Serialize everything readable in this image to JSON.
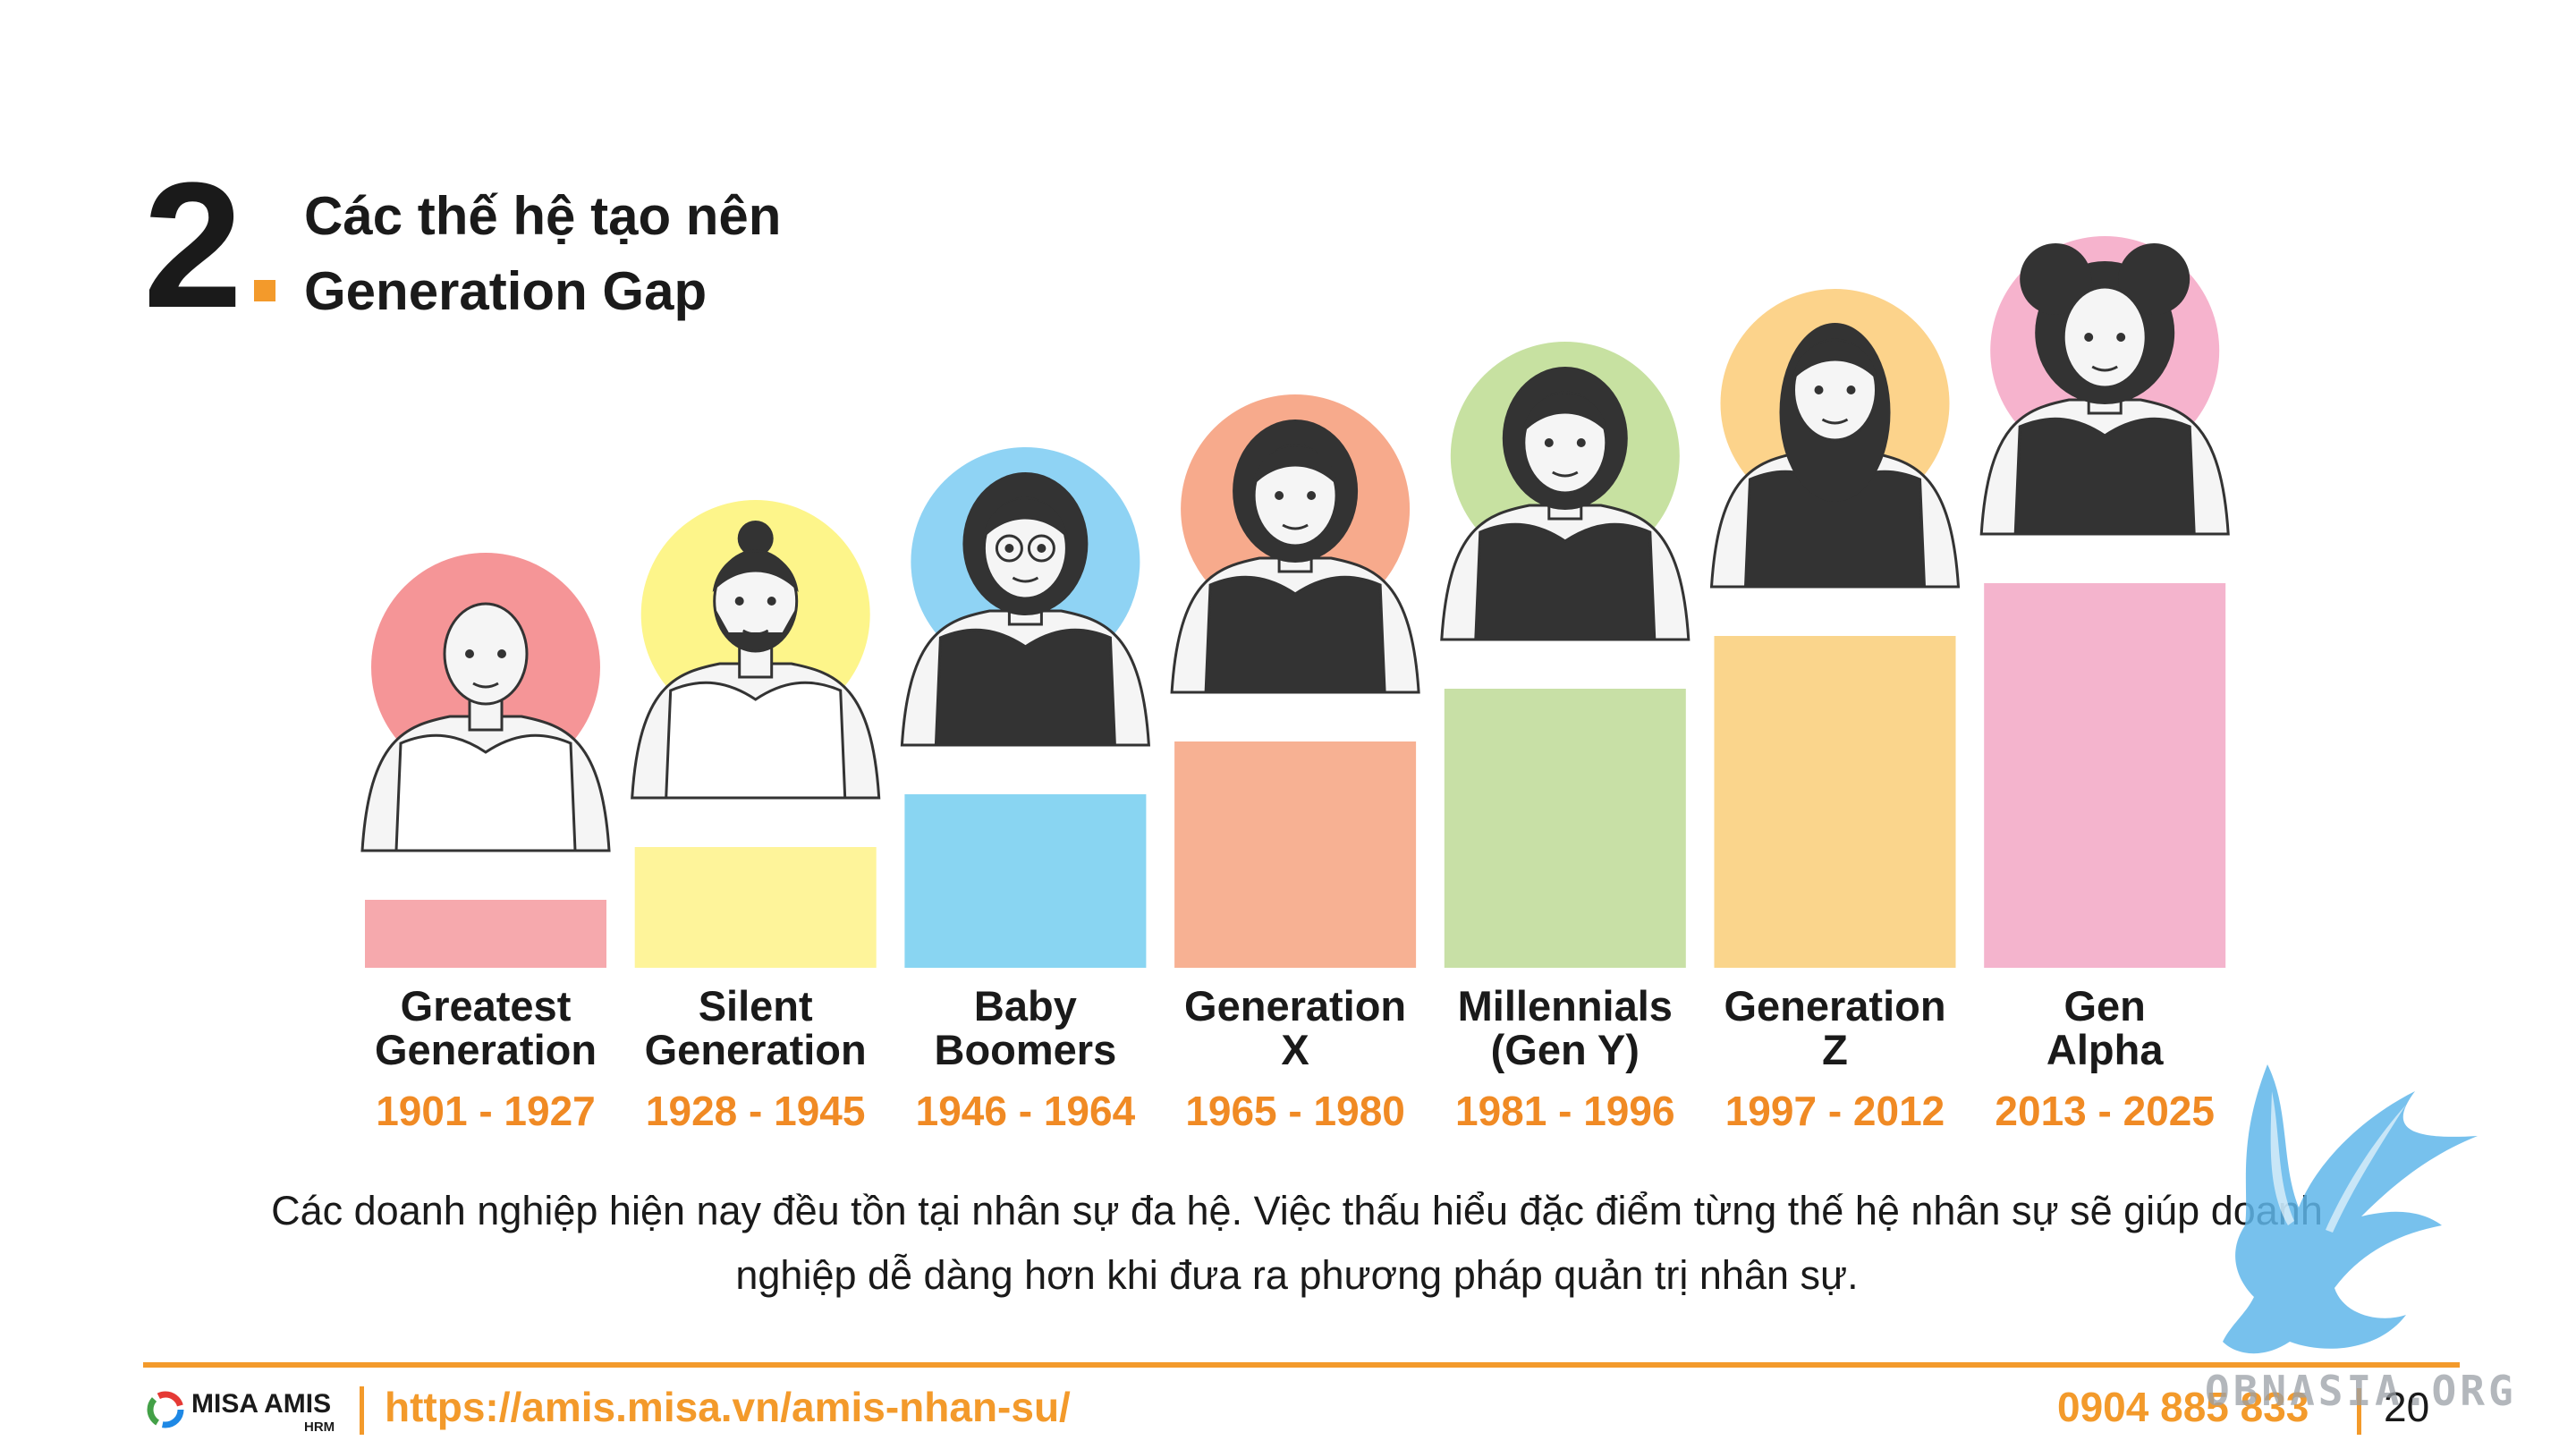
{
  "section": {
    "number": "2",
    "title_line1": "Các thế hệ tạo nên",
    "title_line2": "Generation Gap"
  },
  "colors": {
    "accent": "#f39a2b",
    "years": "#f08a24"
  },
  "generations": [
    {
      "name_line1": "Greatest",
      "name_line2": "Generation",
      "years": "1901 - 1927",
      "bar_color": "#f6a9ad",
      "circle_color": "#f59597",
      "rank": 1
    },
    {
      "name_line1": "Silent",
      "name_line2": "Generation",
      "years": "1928 - 1945",
      "bar_color": "#fef49a",
      "circle_color": "#fdf58a",
      "rank": 2
    },
    {
      "name_line1": "Baby",
      "name_line2": "Boomers",
      "years": "1946 - 1964",
      "bar_color": "#89d5f2",
      "circle_color": "#8fd3f4",
      "rank": 3
    },
    {
      "name_line1": "Generation",
      "name_line2": "X",
      "years": "1965 - 1980",
      "bar_color": "#f7b193",
      "circle_color": "#f7aa8c",
      "rank": 4
    },
    {
      "name_line1": "Millennials",
      "name_line2": "(Gen Y)",
      "years": "1981 - 1996",
      "bar_color": "#c8e0a6",
      "circle_color": "#c7e1a1",
      "rank": 5
    },
    {
      "name_line1": "Generation",
      "name_line2": "Z",
      "years": "1997 - 2012",
      "bar_color": "#fad58c",
      "circle_color": "#fcd38b",
      "rank": 6
    },
    {
      "name_line1": "Gen",
      "name_line2": "Alpha",
      "years": "2013 - 2025",
      "bar_color": "#f4b4cd",
      "circle_color": "#f6b3cd",
      "rank": 7
    }
  ],
  "body_text": {
    "line1": "Các doanh nghiệp hiện nay đều tồn tại nhân sự đa hệ. Việc thấu hiểu đặc điểm từng thế hệ nhân sự sẽ giúp doanh",
    "line2": "nghiệp dễ dàng hơn khi đưa ra phương pháp quản trị nhân sự."
  },
  "footer": {
    "logo_text": "MISA AMIS",
    "logo_sub": "HRM",
    "url": "https://amis.misa.vn/amis-nhan-su/",
    "phone": "0904 885 833",
    "page_number": "20"
  },
  "watermark": {
    "text": "OBNASIA.ORG",
    "icon": "griffin-icon"
  }
}
